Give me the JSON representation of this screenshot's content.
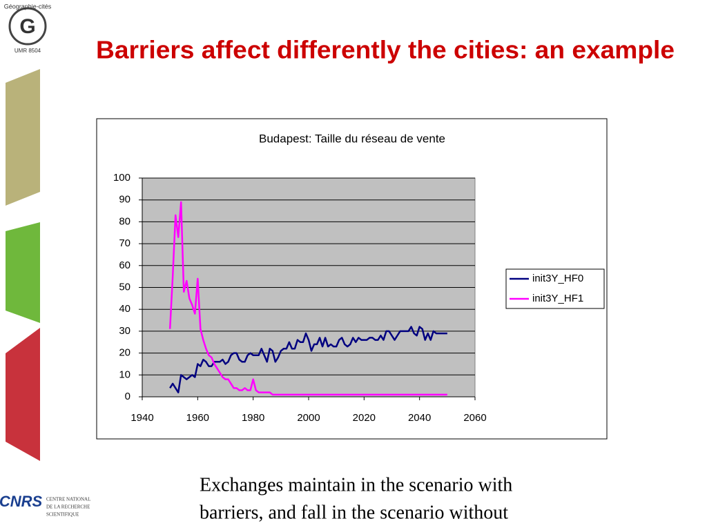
{
  "logo": {
    "name": "Géographie-cités",
    "unit": "UMR 8504"
  },
  "title": "Barriers affect differently the cities: an example",
  "chart_data": {
    "type": "line",
    "title": "Budapest: Taille du réseau de vente",
    "x": [
      1950,
      1951,
      1952,
      1953,
      1954,
      1955,
      1956,
      1957,
      1958,
      1959,
      1960,
      1961,
      1962,
      1963,
      1964,
      1965,
      1966,
      1967,
      1968,
      1969,
      1970,
      1971,
      1972,
      1973,
      1974,
      1975,
      1976,
      1977,
      1978,
      1979,
      1980,
      1981,
      1982,
      1983,
      1984,
      1985,
      1986,
      1987,
      1988,
      1989,
      1990,
      1991,
      1992,
      1993,
      1994,
      1995,
      1996,
      1997,
      1998,
      1999,
      2000,
      2001,
      2002,
      2003,
      2004,
      2005,
      2006,
      2007,
      2008,
      2009,
      2010,
      2011,
      2012,
      2013,
      2014,
      2015,
      2016,
      2017,
      2018,
      2019,
      2020,
      2021,
      2022,
      2023,
      2024,
      2025,
      2026,
      2027,
      2028,
      2029,
      2030,
      2031,
      2032,
      2033,
      2034,
      2035,
      2036,
      2037,
      2038,
      2039,
      2040,
      2041,
      2042,
      2043,
      2044,
      2045,
      2046,
      2047,
      2048,
      2049,
      2050
    ],
    "series": [
      {
        "name": "init3Y_HF0",
        "color": "#000080",
        "values": [
          4,
          6,
          4,
          2,
          10,
          9,
          8,
          9,
          10,
          9,
          15,
          14,
          17,
          16,
          14,
          14,
          16,
          16,
          16,
          17,
          15,
          16,
          19,
          20,
          20,
          17,
          16,
          16,
          19,
          20,
          19,
          19,
          19,
          22,
          19,
          16,
          22,
          21,
          16,
          18,
          21,
          22,
          22,
          25,
          22,
          22,
          26,
          25,
          25,
          29,
          26,
          21,
          24,
          24,
          27,
          23,
          27,
          23,
          24,
          23,
          23,
          26,
          27,
          24,
          23,
          24,
          27,
          25,
          27,
          26,
          26,
          26,
          27,
          27,
          26,
          26,
          28,
          26,
          30,
          30,
          28,
          26,
          28,
          30,
          30,
          30,
          30,
          32,
          29,
          28,
          32,
          31,
          26,
          29,
          26,
          30,
          29,
          29,
          29,
          29,
          29
        ]
      },
      {
        "name": "init3Y_HF1",
        "color": "#ff00ff",
        "values": [
          31,
          55,
          83,
          73,
          89,
          48,
          53,
          45,
          42,
          38,
          54,
          31,
          26,
          22,
          19,
          18,
          15,
          13,
          11,
          9,
          8,
          8,
          6,
          4,
          4,
          3,
          3,
          4,
          3,
          3,
          8,
          3,
          2,
          2,
          2,
          2,
          2,
          1,
          1,
          1,
          1,
          1,
          1,
          1,
          1,
          1,
          1,
          1,
          1,
          1,
          1,
          1,
          1,
          1,
          1,
          1,
          1,
          1,
          1,
          1,
          1,
          1,
          1,
          1,
          1,
          1,
          1,
          1,
          1,
          1,
          1,
          1,
          1,
          1,
          1,
          1,
          1,
          1,
          1,
          1,
          1,
          1,
          1,
          1,
          1,
          1,
          1,
          1,
          1,
          1,
          1,
          1,
          1,
          1,
          1,
          1,
          1,
          1,
          1,
          1,
          1
        ]
      }
    ],
    "xlim": [
      1940,
      2060
    ],
    "xticks": [
      1940,
      1960,
      1980,
      2000,
      2020,
      2040,
      2060
    ],
    "ylim": [
      0,
      100
    ],
    "yticks": [
      0,
      10,
      20,
      30,
      40,
      50,
      60,
      70,
      80,
      90,
      100
    ],
    "grid": true,
    "plot_background": "#c0c0c0",
    "legend": "right"
  },
  "caption": [
    "Exchanges maintain in the scenario with",
    "barriers, and fall in the scenario without"
  ],
  "footer": {
    "cnrs": "CNRS",
    "institution": [
      "CENTRE NATIONAL",
      "DE LA RECHERCHE",
      "SCIENTIFIQUE"
    ]
  }
}
